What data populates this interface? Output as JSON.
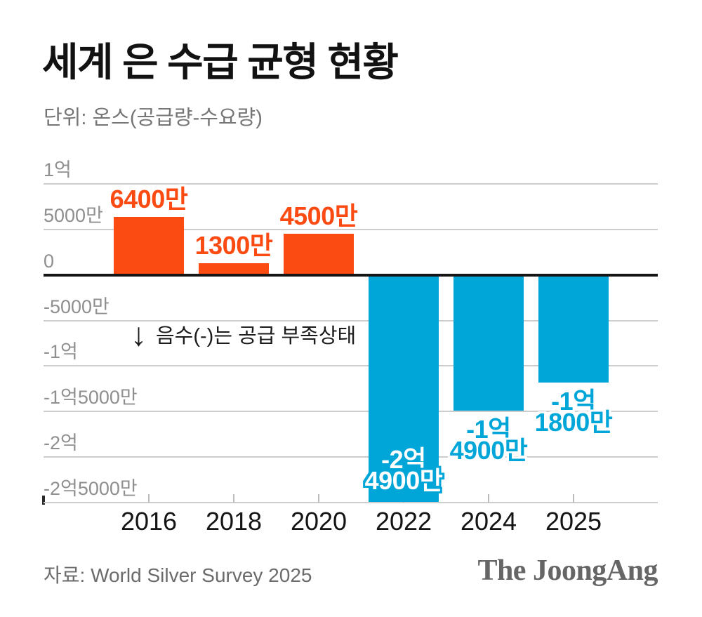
{
  "header": {
    "title": "세계 은 수급 균형 현황",
    "subtitle": "단위: 온스(공급량-수요량)"
  },
  "annotation": {
    "arrow": "↓",
    "text": "음수(-)는 공급 부족상태"
  },
  "footer": {
    "source": "자료: World Silver Survey 2025",
    "logo": "The JoongAng"
  },
  "colors": {
    "positive": "#fb4a12",
    "negative": "#00a6d8",
    "grid": "#cdcdcd",
    "zero_line": "#161616",
    "axis_text": "#8f8f8f",
    "year_text": "#141414",
    "muted_text": "#757575",
    "annotation_text": "#1b1b1b",
    "source_text": "#6b6b6b",
    "logo_text": "#666666",
    "background": "#ffffff"
  },
  "chart_data": {
    "type": "bar",
    "title": "세계 은 수급 균형 현황",
    "unit_note": "단위: 온스(공급량-수요량)",
    "xlabel": "",
    "ylabel": "온스",
    "grid": true,
    "legend": false,
    "categories": [
      "2016",
      "2018",
      "2020",
      "2022",
      "2024",
      "2025"
    ],
    "values": [
      64000000,
      13000000,
      45000000,
      -249000000,
      -149000000,
      -118000000
    ],
    "bar_label_lines": [
      [
        "6400만"
      ],
      [
        "1300만"
      ],
      [
        "4500만"
      ],
      [
        "-2억",
        "4900만"
      ],
      [
        "-1억",
        "4900만"
      ],
      [
        "-1억",
        "1800만"
      ]
    ],
    "y_axis": {
      "min": -250000000,
      "max": 100000000,
      "ticks": [
        {
          "label": "1억",
          "value": 100000000
        },
        {
          "label": "5000만",
          "value": 50000000
        },
        {
          "label": "0",
          "value": 0
        },
        {
          "label": "-5000만",
          "value": -50000000
        },
        {
          "label": "-1억",
          "value": -100000000
        },
        {
          "label": "-1억5000만",
          "value": -150000000
        },
        {
          "label": "-2억",
          "value": -200000000
        },
        {
          "label": "-2억5000만",
          "value": -250000000
        }
      ]
    },
    "annotation": "음수(-)는 공급 부족상태"
  }
}
